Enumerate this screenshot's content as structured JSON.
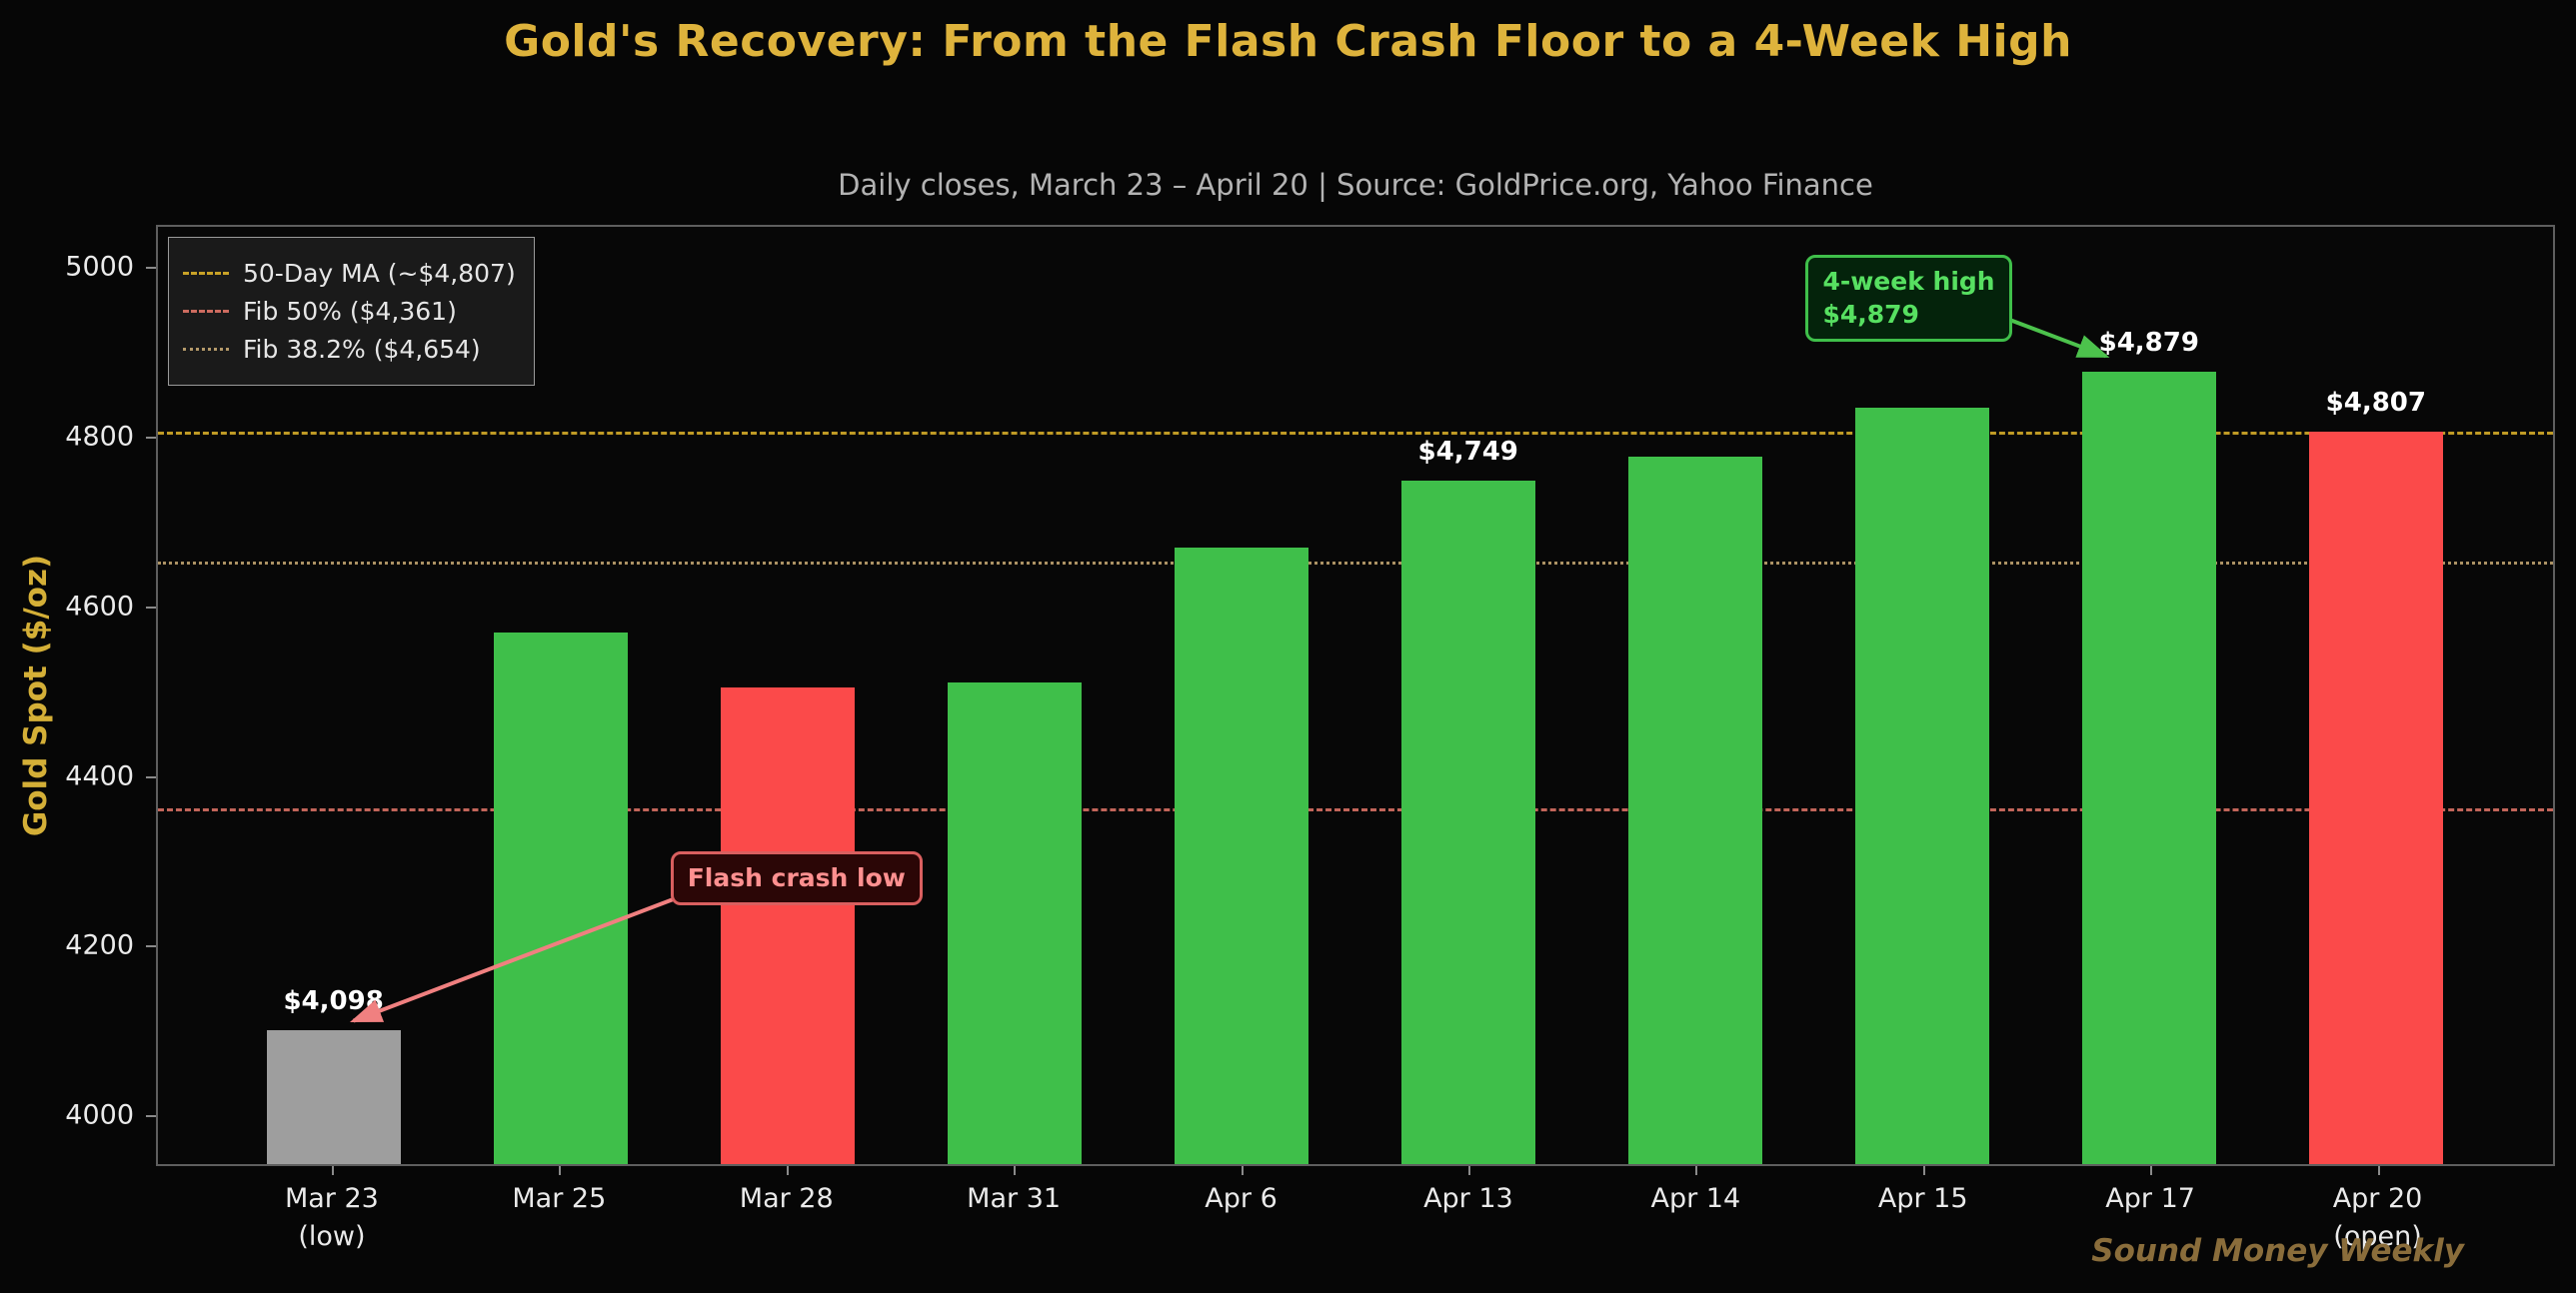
{
  "chart": {
    "title": "Gold's Recovery: From the Flash Crash Floor to a 4-Week High",
    "subtitle": "Daily closes, March 23 – April 20  |  Source: GoldPrice.org, Yahoo Finance",
    "ylabel": "Gold Spot ($/oz)",
    "watermark": "Sound Money Weekly"
  },
  "chart_data": {
    "type": "bar",
    "categories": [
      "Mar 23\n(low)",
      "Mar 25",
      "Mar 28",
      "Mar 31",
      "Apr 6",
      "Apr 13",
      "Apr 14",
      "Apr 15",
      "Apr 17",
      "Apr 20\n(open)"
    ],
    "values": [
      4098,
      4570,
      4505,
      4510,
      4670,
      4749,
      4778,
      4836,
      4879,
      4807
    ],
    "bar_colors": [
      "gray",
      "green",
      "red",
      "green",
      "green",
      "green",
      "green",
      "green",
      "green",
      "red"
    ],
    "value_labels": [
      "$4,098",
      null,
      null,
      null,
      null,
      "$4,749",
      null,
      null,
      "$4,879",
      "$4,807"
    ],
    "title": "Gold's Recovery: From the Flash Crash Floor to a 4-Week High",
    "xlabel": "",
    "ylabel": "Gold Spot ($/oz)",
    "ylim": [
      3940,
      5050
    ],
    "yticks": [
      4000,
      4200,
      4400,
      4600,
      4800,
      5000
    ],
    "grid": false,
    "legend_position": "upper left",
    "ref_lines": [
      {
        "label": "50-Day MA (~$4,807)",
        "value": 4807,
        "style": "dashed",
        "color": "#c9a227"
      },
      {
        "label": "Fib 50% ($4,361)",
        "value": 4361,
        "style": "dashed",
        "color": "#cd6b5f"
      },
      {
        "label": "Fib 38.2% ($4,654)",
        "value": 4654,
        "style": "dotted",
        "color": "#b59a6a"
      }
    ],
    "annotations": [
      {
        "text": "4-week high\n$4,879",
        "target": "Apr 17",
        "color": "green"
      },
      {
        "text": "Flash crash low",
        "target": "Mar 23 (low)",
        "color": "red"
      }
    ]
  },
  "colors": {
    "green": "#3fbf4a",
    "red": "#fb4a4a",
    "gray": "#9e9e9e",
    "title_gold": "#deb33c",
    "axis_label_gold": "#d4af37",
    "annotation_green": "#57e061",
    "annotation_red": "#ff9090",
    "arrow_green": "#4cc24c",
    "arrow_salmon": "#f08080",
    "watermark_gold": "#8a6d3b"
  }
}
